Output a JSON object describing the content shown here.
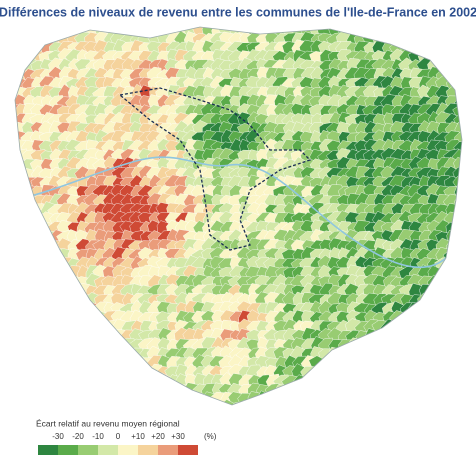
{
  "title": "Différences de niveaux de revenu entre les communes de l'Ile-de-France en 2002",
  "legend": {
    "title": "Écart relatif au revenu moyen régional",
    "ticks": [
      -30,
      -20,
      -10,
      0,
      {
        "value": 10,
        "label": "+10"
      },
      {
        "value": 20,
        "label": "+20"
      },
      {
        "value": 30,
        "label": "+30"
      }
    ],
    "unit": "(%)",
    "colors": [
      "#2e8640",
      "#5aab4a",
      "#98cc72",
      "#d3e8a8",
      "#fbf5c6",
      "#f5d39c",
      "#ea9c7a",
      "#cf4a35"
    ]
  }
}
